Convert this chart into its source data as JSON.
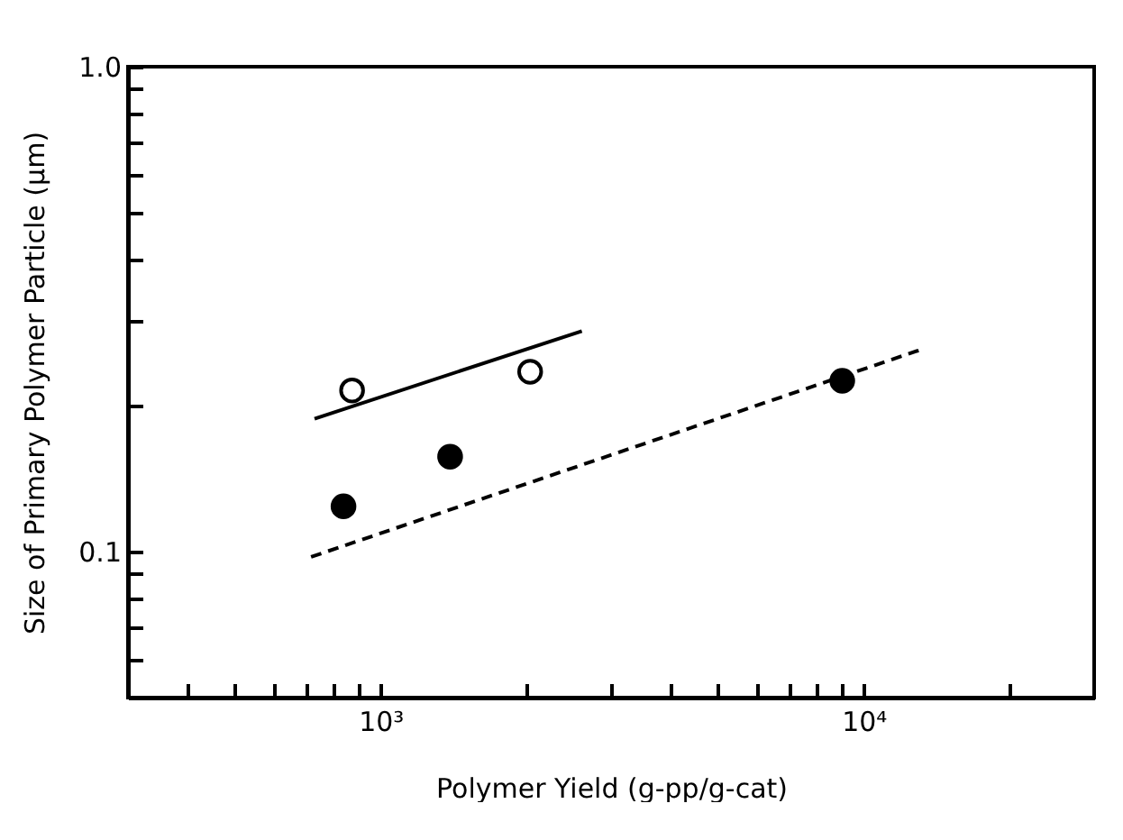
{
  "chart_data": {
    "type": "scatter",
    "xlabel": "Polymer Yield (g-pp/g-cat)",
    "ylabel": "Size of Primary Polymer Particle (μm)",
    "log": "xy",
    "grid": false,
    "xlim": [
      300,
      30000
    ],
    "ylim": [
      0.05,
      1
    ],
    "xticks": [
      {
        "value": 400,
        "label": null
      },
      {
        "value": 500,
        "label": null
      },
      {
        "value": 600,
        "label": null
      },
      {
        "value": 700,
        "label": null
      },
      {
        "value": 800,
        "label": null
      },
      {
        "value": 900,
        "label": null
      },
      {
        "value": 1000,
        "label": "10³"
      },
      {
        "value": 2000,
        "label": null
      },
      {
        "value": 3000,
        "label": null
      },
      {
        "value": 4000,
        "label": null
      },
      {
        "value": 5000,
        "label": null
      },
      {
        "value": 6000,
        "label": null
      },
      {
        "value": 7000,
        "label": null
      },
      {
        "value": 8000,
        "label": null
      },
      {
        "value": 9000,
        "label": null
      },
      {
        "value": 10000,
        "label": "10⁴"
      },
      {
        "value": 20000,
        "label": null
      }
    ],
    "yticks": [
      {
        "value": 0.06,
        "label": null
      },
      {
        "value": 0.07,
        "label": null
      },
      {
        "value": 0.08,
        "label": null
      },
      {
        "value": 0.09,
        "label": null
      },
      {
        "value": 0.1,
        "label": "0.1"
      },
      {
        "value": 0.2,
        "label": null
      },
      {
        "value": 0.3,
        "label": null
      },
      {
        "value": 0.4,
        "label": null
      },
      {
        "value": 0.5,
        "label": null
      },
      {
        "value": 0.6,
        "label": null
      },
      {
        "value": 0.7,
        "label": null
      },
      {
        "value": 0.8,
        "label": null
      },
      {
        "value": 0.9,
        "label": null
      },
      {
        "value": 1,
        "label": "1.0"
      }
    ],
    "series": [
      {
        "type": "line",
        "color": "#000000",
        "line_style": "solid",
        "x": [
          730,
          2610
        ],
        "values": [
          0.188,
          0.285
        ]
      },
      {
        "type": "line",
        "color": "#000000",
        "line_style": "dashed",
        "x": [
          718,
          13000
        ],
        "values": [
          0.0975,
          0.26
        ]
      },
      {
        "color": "#ffffff",
        "marker": "circle",
        "x": [
          873,
          2040
        ],
        "values": [
          0.215,
          0.235
        ]
      },
      {
        "color": "#000000",
        "marker": "circle",
        "x": [
          838,
          1393,
          9030
        ],
        "values": [
          0.124,
          0.157,
          0.225
        ]
      }
    ]
  }
}
